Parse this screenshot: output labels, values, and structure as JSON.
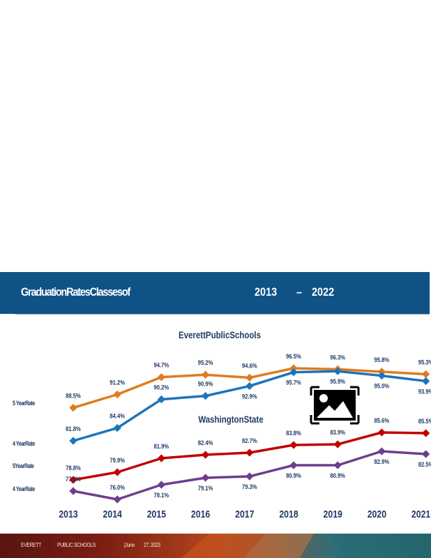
{
  "header": {
    "title": "GraduationRatesClassesof",
    "year_start": "2013",
    "dash": "–",
    "year_end": "2022"
  },
  "chart_data": {
    "type": "line",
    "x": [
      "2013",
      "2014",
      "2015",
      "2016",
      "2017",
      "2018",
      "2019",
      "2020",
      "2021"
    ],
    "groups": [
      {
        "title": "EverettPublicSchools"
      },
      {
        "title": "WashingtonState"
      }
    ],
    "row_labels": [
      "5   YearRate",
      "4   YearRate",
      "5YearRate",
      "4   YearRate"
    ],
    "series": [
      {
        "values": [
          88.5,
          91.2,
          94.7,
          95.2,
          94.6,
          96.5,
          96.3,
          95.8,
          95.3
        ],
        "labels": [
          "88.5%",
          "91.2%",
          "94.7%",
          "95.2%",
          "94.6%",
          "96.5%",
          "96.3%",
          "95.8%",
          "95.3%"
        ],
        "color": "#e07b1f"
      },
      {
        "values": [
          81.8,
          84.4,
          90.2,
          90.9,
          92.9,
          95.7,
          95.9,
          95.0,
          93.9
        ],
        "labels": [
          "81.8%",
          "84.4%",
          "90.2%",
          "90.9%",
          "92.9%",
          "95.7%",
          "95.9%",
          "95.0%",
          "93.9%"
        ],
        "color": "#1b75bc"
      },
      {
        "values": [
          78.8,
          79.9,
          81.9,
          82.4,
          82.7,
          83.8,
          83.9,
          85.6,
          85.5
        ],
        "labels": [
          "78.8%",
          "79.9%",
          "81.9%",
          "82.4%",
          "82.7%",
          "83.8%",
          "83.9%",
          "85.6%",
          "85.5%"
        ],
        "color": "#c00000"
      },
      {
        "values": [
          77.2,
          76.0,
          78.1,
          79.1,
          79.3,
          80.9,
          80.9,
          82.9,
          82.5
        ],
        "labels": [
          "77.2%",
          "76.0%",
          "78.1%",
          "79.1%",
          "79.3%",
          "80.9%",
          "80.9%",
          "82.9%",
          "82.5%"
        ],
        "color": "#6f3d8f"
      }
    ],
    "legend": "none",
    "grid": false
  },
  "footer": {
    "org": "EVERETT",
    "org2": "PUBLIC SCHOOLS",
    "date": "|June",
    "date2": "27, 2023"
  },
  "icons": {
    "placeholder": "image-placeholder-icon"
  }
}
